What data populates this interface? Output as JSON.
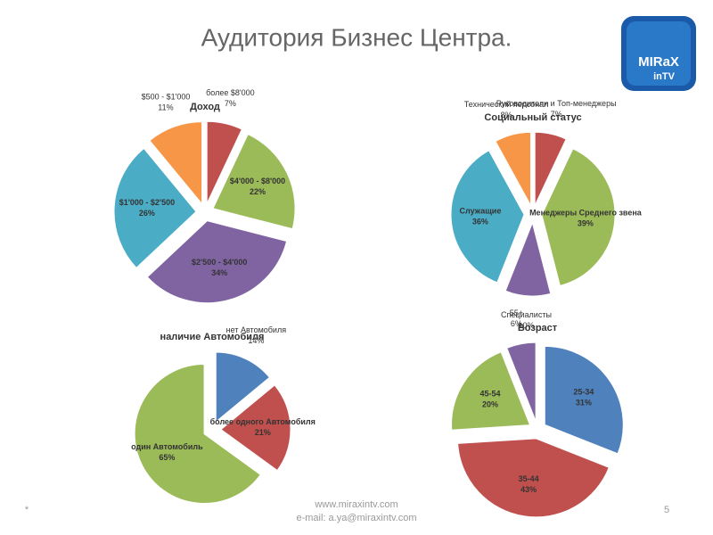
{
  "slide": {
    "title": "Аудитория Бизнес Центра.",
    "logo": [
      "MIRaX",
      "inTV"
    ],
    "footer": {
      "website": "www.miraxintv.com",
      "email": "e-mail: a.ya@miraxintv.com",
      "page": "5",
      "marker": "*"
    }
  },
  "chart_data": [
    {
      "type": "pie",
      "title": "Доход",
      "categories": [
        "более $8'000",
        "$4'000 - $8'000",
        "$2'500 - $4'000",
        "$1'000 - $2'500",
        "$500 - $1'000"
      ],
      "values": [
        7,
        22,
        34,
        26,
        11
      ],
      "value_labels": [
        "7%",
        "22%",
        "34%",
        "26%",
        "11%"
      ],
      "colors": [
        "#c0504d",
        "#9bbb59",
        "#8064a2",
        "#4bacc6",
        "#f79646"
      ]
    },
    {
      "type": "pie",
      "title": "Социальный статус",
      "categories": [
        "Руководители и Топ-менеджеры",
        "Менеджеры Среднего звена",
        "Специалисты",
        "Служащие",
        "Технический персонал"
      ],
      "values": [
        7,
        39,
        10,
        36,
        8
      ],
      "value_labels": [
        "7%",
        "39%",
        "10%",
        "36%",
        "8%"
      ],
      "colors": [
        "#c0504d",
        "#9bbb59",
        "#8064a2",
        "#4bacc6",
        "#f79646"
      ]
    },
    {
      "type": "pie",
      "title": "наличие Автомобиля",
      "categories": [
        "нет Автомобиля",
        "более одного Автомобиля",
        "один Автомобиль"
      ],
      "values": [
        14,
        21,
        65
      ],
      "value_labels": [
        "14%",
        "21%",
        "65%"
      ],
      "colors": [
        "#4f81bd",
        "#c0504d",
        "#9bbb59"
      ]
    },
    {
      "type": "pie",
      "title": "Возраст",
      "categories": [
        "25-34",
        "35-44",
        "45-54",
        "55+"
      ],
      "values": [
        31,
        43,
        20,
        6
      ],
      "value_labels": [
        "31%",
        "43%",
        "20%",
        "6%"
      ],
      "colors": [
        "#4f81bd",
        "#c0504d",
        "#9bbb59",
        "#8064a2"
      ]
    }
  ]
}
